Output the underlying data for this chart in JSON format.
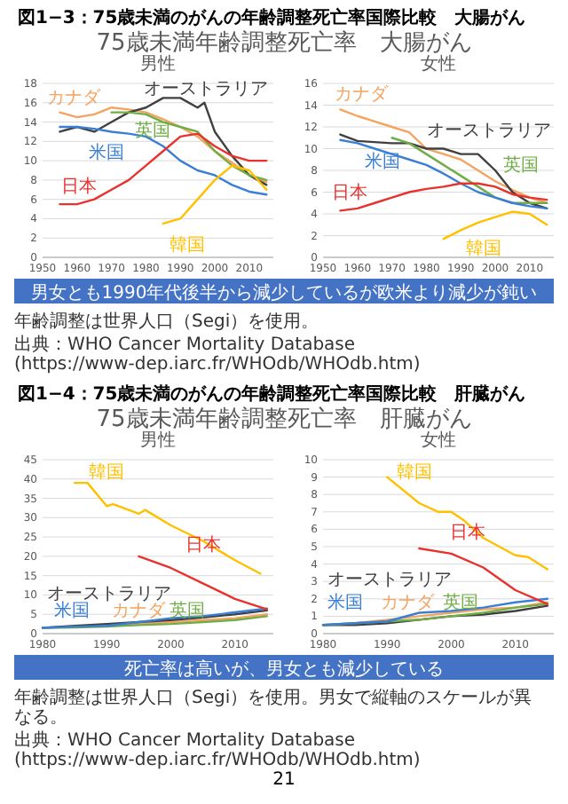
{
  "chart_data": [
    {
      "type": "line",
      "title": "男性",
      "grid": "y",
      "xlim": [
        1950,
        2017
      ],
      "xticks": [
        1950,
        1960,
        1970,
        1980,
        1990,
        2000,
        2010
      ],
      "ylim": [
        0,
        18
      ],
      "yticks": [
        0,
        2,
        4,
        6,
        8,
        10,
        12,
        14,
        16,
        18
      ],
      "annotations": [
        "図1−3：75歳未満のがんの年齢調整死亡率国際比較　大腸がん",
        "75歳未満年齢調整死亡率　大腸がん",
        "男女とも1990年代後半から減少しているが欧米より減少が鈍い"
      ],
      "series": [
        {
          "name": "カナダ",
          "color": "#f4a460",
          "x": [
            1955,
            1960,
            1965,
            1970,
            1975,
            1980,
            1985,
            1990,
            1995,
            2000,
            2005,
            2010,
            2015
          ],
          "values": [
            15,
            14.5,
            14.8,
            15.5,
            15.3,
            15,
            14.3,
            13.5,
            12.5,
            11,
            9.8,
            8.5,
            7.8
          ]
        },
        {
          "name": "オーストラリア",
          "color": "#404040",
          "x": [
            1955,
            1960,
            1965,
            1970,
            1975,
            1980,
            1985,
            1990,
            1995,
            1997,
            2000,
            2005,
            2010,
            2015
          ],
          "values": [
            13,
            13.5,
            13,
            14,
            15,
            15.5,
            16.5,
            16.5,
            15.5,
            16,
            13,
            10.5,
            8.5,
            7.5
          ]
        },
        {
          "name": "英国",
          "color": "#70ad47",
          "x": [
            1970,
            1975,
            1980,
            1985,
            1990,
            1995,
            2000,
            2005,
            2010,
            2015
          ],
          "values": [
            15,
            15,
            14.8,
            14,
            13.5,
            13,
            11,
            9.5,
            8.5,
            8
          ]
        },
        {
          "name": "米国",
          "color": "#3a7fd5",
          "x": [
            1955,
            1960,
            1965,
            1970,
            1975,
            1980,
            1985,
            1990,
            1995,
            2000,
            2005,
            2010,
            2015
          ],
          "values": [
            13.5,
            13.5,
            13.3,
            13,
            12.8,
            12.5,
            11.5,
            10,
            9,
            8.5,
            7.5,
            6.8,
            6.5
          ]
        },
        {
          "name": "日本",
          "color": "#e8322d",
          "x": [
            1955,
            1960,
            1965,
            1970,
            1975,
            1980,
            1985,
            1990,
            1995,
            2000,
            2005,
            2010,
            2015
          ],
          "values": [
            5.5,
            5.5,
            6,
            7,
            8,
            9.5,
            11,
            12.5,
            12.8,
            11.5,
            10.5,
            10,
            10
          ]
        },
        {
          "name": "韓国",
          "color": "#ffc000",
          "x": [
            1985,
            1990,
            1995,
            2000,
            2005,
            2010,
            2015
          ],
          "values": [
            3.5,
            4,
            6,
            8,
            9.5,
            9,
            7
          ]
        }
      ]
    },
    {
      "type": "line",
      "title": "女性",
      "grid": "y",
      "xlim": [
        1950,
        2017
      ],
      "xticks": [
        1950,
        1960,
        1970,
        1980,
        1990,
        2000,
        2010
      ],
      "ylim": [
        0,
        16
      ],
      "yticks": [
        0,
        2,
        4,
        6,
        8,
        10,
        12,
        14,
        16
      ],
      "annotations": [
        "年齢調整は世界人口（Segi）を使用。",
        "出典：WHO Cancer Mortality Database (https://www-dep.iarc.fr/WHOdb/WHOdb.htm)"
      ],
      "series": [
        {
          "name": "カナダ",
          "color": "#f4a460",
          "x": [
            1955,
            1960,
            1965,
            1970,
            1975,
            1980,
            1985,
            1990,
            1995,
            2000,
            2005,
            2010,
            2015
          ],
          "values": [
            13.6,
            13,
            12.5,
            12,
            11.5,
            10,
            9.5,
            9,
            8,
            7,
            6.2,
            5.5,
            5
          ]
        },
        {
          "name": "オーストラリア",
          "color": "#404040",
          "x": [
            1955,
            1960,
            1965,
            1970,
            1975,
            1980,
            1985,
            1990,
            1995,
            2000,
            2005,
            2010,
            2015
          ],
          "values": [
            11.3,
            10.7,
            10.6,
            10.5,
            10.5,
            10,
            10,
            9.5,
            9.5,
            8,
            6,
            5,
            4.5
          ]
        },
        {
          "name": "英国",
          "color": "#70ad47",
          "x": [
            1970,
            1975,
            1980,
            1985,
            1990,
            1995,
            2000,
            2005,
            2010,
            2015
          ],
          "values": [
            11,
            10.5,
            9.5,
            8.5,
            7.5,
            6.5,
            5.5,
            5,
            5,
            5
          ]
        },
        {
          "name": "米国",
          "color": "#3a7fd5",
          "x": [
            1955,
            1960,
            1965,
            1970,
            1975,
            1980,
            1985,
            1990,
            1995,
            2000,
            2005,
            2010,
            2015
          ],
          "values": [
            10.8,
            10.5,
            10,
            9.5,
            9,
            8.5,
            7.7,
            6.8,
            6,
            5.5,
            5,
            4.7,
            4.5
          ]
        },
        {
          "name": "日本",
          "color": "#e8322d",
          "x": [
            1955,
            1960,
            1965,
            1970,
            1975,
            1980,
            1985,
            1990,
            1995,
            2000,
            2005,
            2010,
            2015
          ],
          "values": [
            4.3,
            4.5,
            5,
            5.5,
            6,
            6.3,
            6.5,
            6.8,
            6.8,
            6.5,
            5.8,
            5.5,
            5.3
          ]
        },
        {
          "name": "韓国",
          "color": "#ffc000",
          "x": [
            1985,
            1990,
            1995,
            2000,
            2005,
            2010,
            2015
          ],
          "values": [
            1.7,
            2.5,
            3.2,
            3.7,
            4.2,
            4,
            3
          ]
        }
      ]
    },
    {
      "type": "line",
      "title": "男性",
      "grid": "y",
      "xlim": [
        1980,
        2016
      ],
      "xticks": [
        1980,
        1990,
        2000,
        2010
      ],
      "ylim": [
        0,
        45
      ],
      "yticks": [
        0,
        5,
        10,
        15,
        20,
        25,
        30,
        35,
        40,
        45
      ],
      "annotations": [
        "図1−4：75歳未満のがんの年齢調整死亡率国際比較　肝臓がん",
        "75歳未満年齢調整死亡率　肝臓がん",
        "死亡率は高いが、男女とも減少している"
      ],
      "series": [
        {
          "name": "カナダ",
          "color": "#f4a460",
          "x": [
            1990,
            1995,
            2000,
            2005,
            2010,
            2015
          ],
          "values": [
            2,
            2.5,
            3,
            3.5,
            4,
            5
          ]
        },
        {
          "name": "オーストラリア",
          "color": "#404040",
          "x": [
            1980,
            1985,
            1990,
            1995,
            2000,
            2005,
            2010,
            2015
          ],
          "values": [
            1.5,
            2,
            2.5,
            3,
            3.5,
            4.2,
            5,
            6
          ]
        },
        {
          "name": "英国",
          "color": "#70ad47",
          "x": [
            1980,
            1985,
            1990,
            1995,
            2000,
            2005,
            2010,
            2015
          ],
          "values": [
            1.5,
            1.6,
            1.8,
            2.2,
            2.5,
            3,
            3.5,
            4.5
          ]
        },
        {
          "name": "米国",
          "color": "#3a7fd5",
          "x": [
            1980,
            1985,
            1990,
            1995,
            2000,
            2005,
            2010,
            2015
          ],
          "values": [
            1.5,
            1.8,
            2,
            3,
            4,
            4.5,
            5.5,
            6.5
          ]
        },
        {
          "name": "日本",
          "color": "#e8322d",
          "x": [
            1995,
            2000,
            2005,
            2010,
            2015
          ],
          "values": [
            20,
            17,
            13,
            9,
            6.3
          ]
        },
        {
          "name": "韓国",
          "color": "#ffc000",
          "x": [
            1985,
            1987,
            1990,
            1991,
            1995,
            1996,
            2000,
            2005,
            2010,
            2014
          ],
          "values": [
            39,
            39,
            33,
            33.5,
            31,
            32,
            28,
            24,
            19,
            15.5
          ]
        }
      ]
    },
    {
      "type": "line",
      "title": "女性",
      "grid": "y",
      "xlim": [
        1980,
        2016
      ],
      "xticks": [
        1980,
        1990,
        2000,
        2010
      ],
      "ylim": [
        0,
        10
      ],
      "yticks": [
        0,
        1,
        2,
        3,
        4,
        5,
        6,
        7,
        8,
        9,
        10
      ],
      "annotations": [
        "年齢調整は世界人口（Segi）を使用。男女で縦軸のスケールが異なる。",
        "出典：WHO Cancer Mortality Database (https://www-dep.iarc.fr/WHOdb/WHOdb.htm)",
        "21"
      ],
      "series": [
        {
          "name": "カナダ",
          "color": "#f4a460",
          "x": [
            1980,
            1985,
            1990,
            1995,
            2000,
            2005,
            2010,
            2015
          ],
          "values": [
            0.5,
            0.6,
            0.8,
            1,
            1.2,
            1.4,
            1.5,
            1.8
          ]
        },
        {
          "name": "オーストラリア",
          "color": "#404040",
          "x": [
            1980,
            1985,
            1990,
            1995,
            2000,
            2005,
            2010,
            2015
          ],
          "values": [
            0.5,
            0.5,
            0.6,
            0.8,
            1,
            1.1,
            1.3,
            1.6
          ]
        },
        {
          "name": "英国",
          "color": "#70ad47",
          "x": [
            1980,
            1985,
            1990,
            1995,
            2000,
            2005,
            2010,
            2015
          ],
          "values": [
            0.5,
            0.6,
            0.7,
            0.8,
            1,
            1.2,
            1.5,
            1.7
          ]
        },
        {
          "name": "米国",
          "color": "#3a7fd5",
          "x": [
            1980,
            1985,
            1990,
            1995,
            2000,
            2005,
            2010,
            2015
          ],
          "values": [
            0.5,
            0.6,
            0.7,
            1.2,
            1.3,
            1.5,
            1.8,
            2
          ]
        },
        {
          "name": "日本",
          "color": "#e8322d",
          "x": [
            1995,
            2000,
            2005,
            2010,
            2015
          ],
          "values": [
            4.9,
            4.6,
            3.8,
            2.5,
            1.7
          ]
        },
        {
          "name": "韓国",
          "color": "#ffc000",
          "x": [
            1990,
            1995,
            1998,
            2000,
            2002,
            2005,
            2010,
            2012,
            2015
          ],
          "values": [
            9,
            7.5,
            7,
            7,
            6.5,
            5.5,
            4.5,
            4.4,
            3.7
          ]
        }
      ]
    }
  ]
}
